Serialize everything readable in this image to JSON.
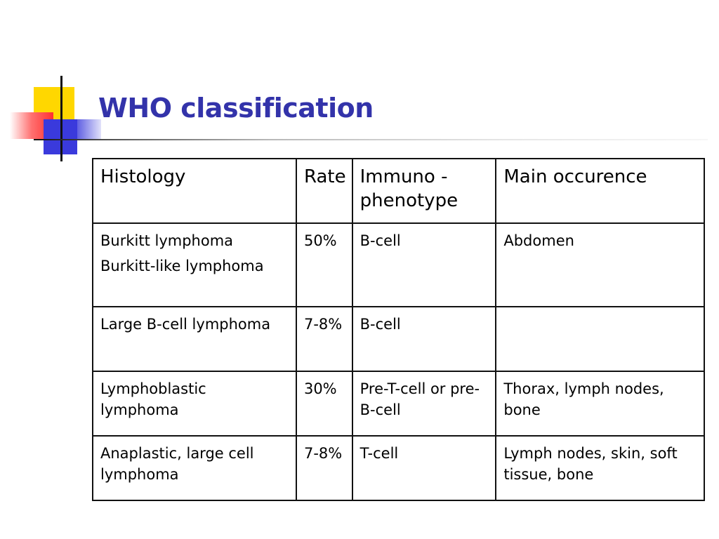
{
  "slide": {
    "title": "WHO classification"
  },
  "table": {
    "headers": [
      "Histology",
      "Rate",
      "Immuno - phenotype",
      "Main occurence"
    ],
    "rows": [
      {
        "histology": [
          "Burkitt lymphoma",
          "Burkitt-like lymphoma"
        ],
        "rate": "50%",
        "immunophenotype": "B-cell",
        "occurrence": "Abdomen"
      },
      {
        "histology": [
          "Large B-cell lymphoma"
        ],
        "rate": "7-8%",
        "immunophenotype": "B-cell",
        "occurrence": ""
      },
      {
        "histology": [
          "Lymphoblastic lymphoma"
        ],
        "rate": "30%",
        "immunophenotype": "Pre-T-cell or pre-B-cell",
        "occurrence": "Thorax, lymph nodes, bone"
      },
      {
        "histology": [
          "Anaplastic, large cell lymphoma"
        ],
        "rate": "7-8%",
        "immunophenotype": "T-cell",
        "occurrence": "Lymph nodes, skin, soft tissue, bone"
      }
    ]
  },
  "colors": {
    "title": "#3333aa",
    "accent_yellow": "#ffd700",
    "accent_red": "#ff3030",
    "accent_blue": "#3a3adc"
  }
}
